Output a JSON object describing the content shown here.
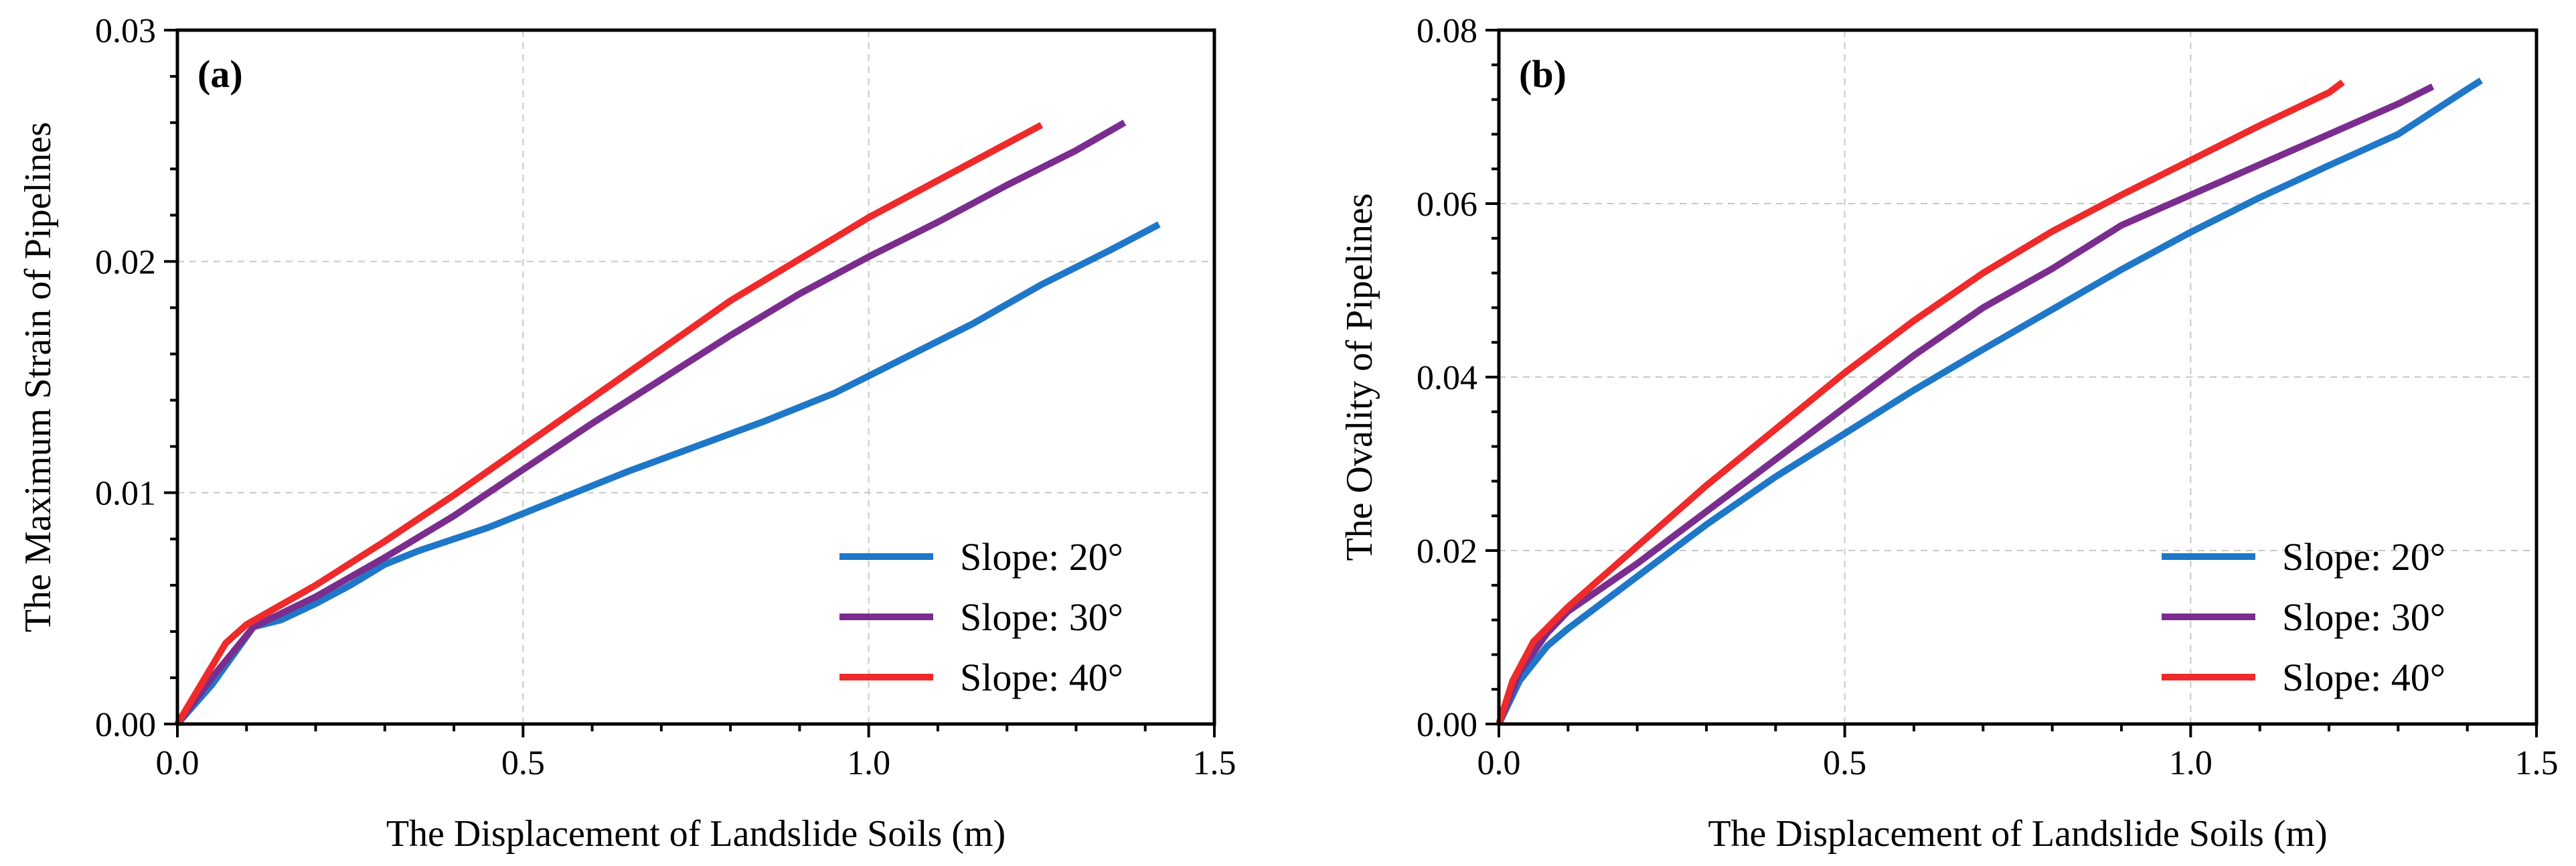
{
  "chart_data": [
    {
      "type": "line",
      "panel_label": "(a)",
      "xlabel": "The Displacement of Landslide Soils (m)",
      "ylabel": "The Maximum Strain of Pipelines",
      "xlim": [
        0,
        1.5
      ],
      "ylim": [
        0,
        0.03
      ],
      "xticks": [
        0,
        0.5,
        1.0,
        1.5
      ],
      "xtick_labels": [
        "0.0",
        "0.5",
        "1.0",
        "1.5"
      ],
      "yticks": [
        0,
        0.01,
        0.02,
        0.03
      ],
      "ytick_labels": [
        "0.00",
        "0.01",
        "0.02",
        "0.03"
      ],
      "grid": true,
      "legend_position": "lower-right",
      "series": [
        {
          "name": "Slope: 20°",
          "color": "#1f77c8",
          "x": [
            0,
            0.05,
            0.11,
            0.15,
            0.2,
            0.25,
            0.3,
            0.35,
            0.45,
            0.55,
            0.65,
            0.75,
            0.85,
            0.95,
            1.05,
            1.15,
            1.25,
            1.35,
            1.42
          ],
          "y": [
            0,
            0.0017,
            0.0042,
            0.0045,
            0.0052,
            0.006,
            0.0069,
            0.0075,
            0.0085,
            0.0097,
            0.0109,
            0.012,
            0.0131,
            0.0143,
            0.0158,
            0.0173,
            0.019,
            0.0205,
            0.0216
          ]
        },
        {
          "name": "Slope: 30°",
          "color": "#7b2d8e",
          "x": [
            0,
            0.05,
            0.11,
            0.2,
            0.3,
            0.4,
            0.5,
            0.6,
            0.7,
            0.8,
            0.9,
            1.0,
            1.1,
            1.2,
            1.3,
            1.37
          ],
          "y": [
            0,
            0.002,
            0.0042,
            0.0055,
            0.0072,
            0.009,
            0.011,
            0.013,
            0.0149,
            0.0168,
            0.0186,
            0.0202,
            0.0217,
            0.0233,
            0.0248,
            0.026
          ]
        },
        {
          "name": "Slope: 40°",
          "color": "#ee2a2a",
          "x": [
            0,
            0.07,
            0.1,
            0.2,
            0.3,
            0.4,
            0.5,
            0.6,
            0.7,
            0.8,
            0.9,
            1.0,
            1.1,
            1.2,
            1.25
          ],
          "y": [
            0,
            0.0035,
            0.0043,
            0.006,
            0.0079,
            0.0099,
            0.012,
            0.0141,
            0.0162,
            0.0183,
            0.0201,
            0.0219,
            0.0235,
            0.0251,
            0.0259
          ]
        }
      ]
    },
    {
      "type": "line",
      "panel_label": "(b)",
      "xlabel": "The Displacement of Landslide Soils (m)",
      "ylabel": "The Ovality of Pipelines",
      "xlim": [
        0,
        1.5
      ],
      "ylim": [
        0,
        0.08
      ],
      "xticks": [
        0,
        0.5,
        1.0,
        1.5
      ],
      "xtick_labels": [
        "0.0",
        "0.5",
        "1.0",
        "1.5"
      ],
      "yticks": [
        0,
        0.02,
        0.04,
        0.06,
        0.08
      ],
      "ytick_labels": [
        "0.00",
        "0.02",
        "0.04",
        "0.06",
        "0.08"
      ],
      "grid": true,
      "legend_position": "lower-right",
      "series": [
        {
          "name": "Slope: 20°",
          "color": "#1f77c8",
          "x": [
            0,
            0.03,
            0.07,
            0.1,
            0.2,
            0.3,
            0.4,
            0.5,
            0.6,
            0.7,
            0.8,
            0.9,
            1.0,
            1.1,
            1.2,
            1.3,
            1.4,
            1.42
          ],
          "y": [
            0,
            0.005,
            0.009,
            0.011,
            0.017,
            0.023,
            0.0285,
            0.0335,
            0.0385,
            0.0432,
            0.0478,
            0.0524,
            0.0567,
            0.0607,
            0.0644,
            0.068,
            0.0732,
            0.0742
          ]
        },
        {
          "name": "Slope: 30°",
          "color": "#7b2d8e",
          "x": [
            0,
            0.03,
            0.07,
            0.1,
            0.2,
            0.3,
            0.4,
            0.5,
            0.6,
            0.7,
            0.8,
            0.9,
            1.0,
            1.1,
            1.2,
            1.3,
            1.35
          ],
          "y": [
            0,
            0.006,
            0.0105,
            0.013,
            0.0185,
            0.0245,
            0.0305,
            0.0365,
            0.0425,
            0.048,
            0.0525,
            0.0575,
            0.061,
            0.0645,
            0.068,
            0.0715,
            0.0735
          ]
        },
        {
          "name": "Slope: 40°",
          "color": "#ee2a2a",
          "x": [
            0,
            0.02,
            0.05,
            0.1,
            0.2,
            0.3,
            0.4,
            0.5,
            0.6,
            0.7,
            0.8,
            0.9,
            1.0,
            1.1,
            1.2,
            1.22
          ],
          "y": [
            0,
            0.005,
            0.0095,
            0.0135,
            0.0205,
            0.0275,
            0.034,
            0.0405,
            0.0465,
            0.052,
            0.0568,
            0.061,
            0.065,
            0.069,
            0.0728,
            0.074
          ]
        }
      ]
    }
  ]
}
